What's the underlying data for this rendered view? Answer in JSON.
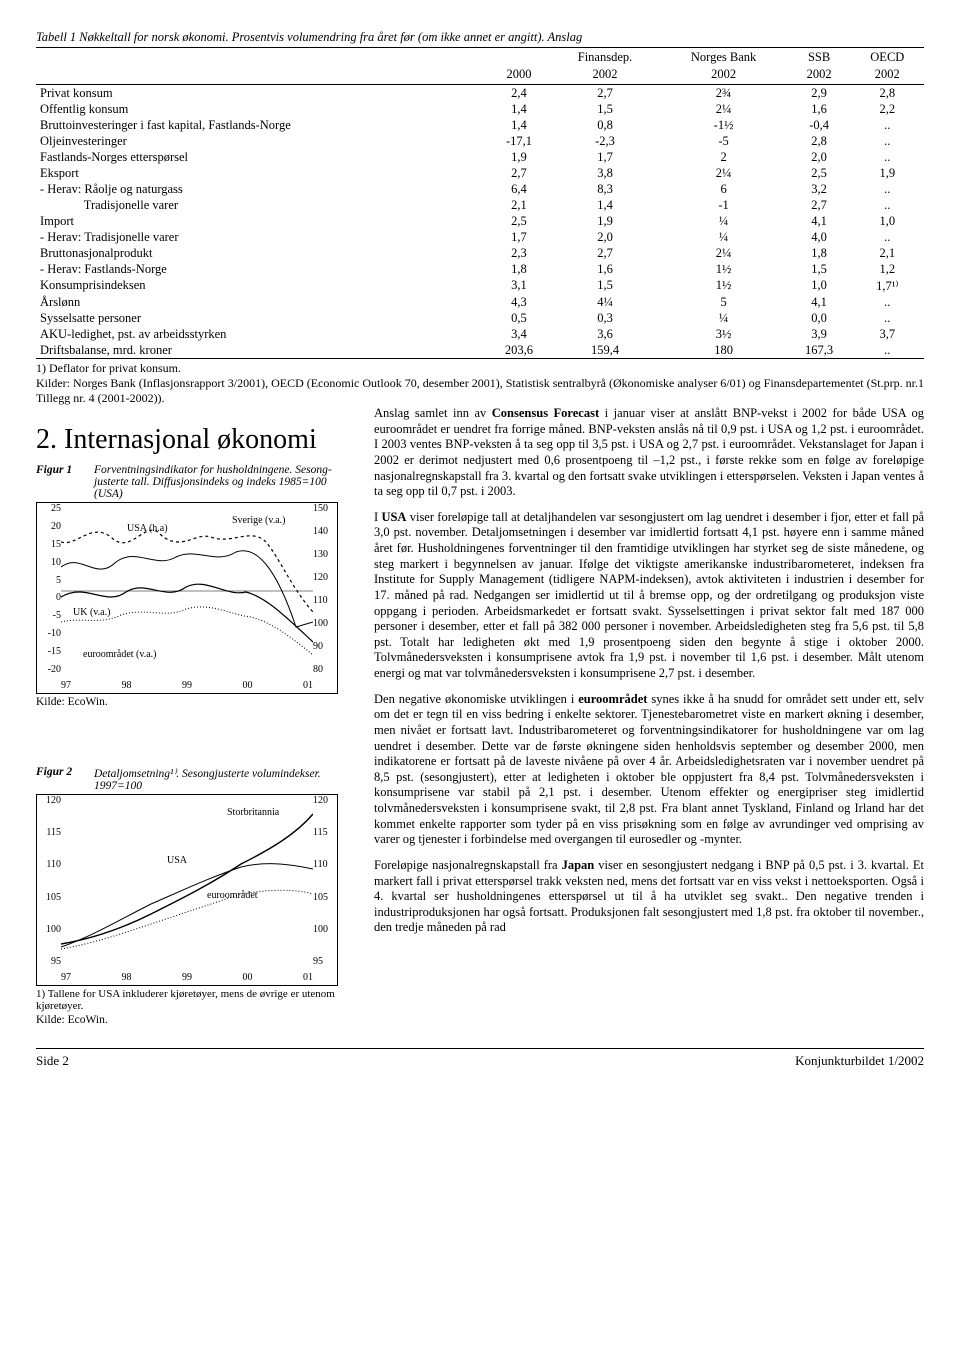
{
  "table": {
    "title": "Tabell 1 Nøkkeltall for norsk økonomi. Prosentvis volumendring fra året før (om ikke annet er angitt). Anslag",
    "head_top": [
      "",
      "",
      "Finansdep.",
      "Norges Bank",
      "SSB",
      "OECD"
    ],
    "head_bot": [
      "",
      "2000",
      "2002",
      "2002",
      "2002",
      "2002"
    ],
    "rows": [
      [
        "Privat konsum",
        "2,4",
        "2,7",
        "2¾",
        "2,9",
        "2,8"
      ],
      [
        "Offentlig konsum",
        "1,4",
        "1,5",
        "2¼",
        "1,6",
        "2,2"
      ],
      [
        "Bruttoinvesteringer i fast kapital, Fastlands-Norge",
        "1,4",
        "0,8",
        "-1½",
        "-0,4",
        ".."
      ],
      [
        "Oljeinvesteringer",
        "-17,1",
        "-2,3",
        "-5",
        "2,8",
        ".."
      ],
      [
        "Fastlands-Norges etterspørsel",
        "1,9",
        "1,7",
        "2",
        "2,0",
        ".."
      ],
      [
        "Eksport",
        "2,7",
        "3,8",
        "2¼",
        "2,5",
        "1,9"
      ],
      [
        "- Herav: Råolje og naturgass",
        "6,4",
        "8,3",
        "6",
        "3,2",
        ".."
      ],
      [
        "              Tradisjonelle varer",
        "2,1",
        "1,4",
        "-1",
        "2,7",
        ".."
      ],
      [
        "Import",
        "2,5",
        "1,9",
        "¼",
        "4,1",
        "1,0"
      ],
      [
        "- Herav: Tradisjonelle varer",
        "1,7",
        "2,0",
        "¼",
        "4,0",
        ".."
      ],
      [
        "Bruttonasjonalprodukt",
        "2,3",
        "2,7",
        "2¼",
        "1,8",
        "2,1"
      ],
      [
        "- Herav: Fastlands-Norge",
        "1,8",
        "1,6",
        "1½",
        "1,5",
        "1,2"
      ],
      [
        "Konsumprisindeksen",
        "3,1",
        "1,5",
        "1½",
        "1,0",
        "1,7¹⁾"
      ],
      [
        "Årslønn",
        "4,3",
        "4¼",
        "5",
        "4,1",
        ".."
      ],
      [
        "Sysselsatte personer",
        "0,5",
        "0,3",
        "¼",
        "0,0",
        ".."
      ],
      [
        "AKU-ledighet, pst. av arbeidsstyrken",
        "3,4",
        "3,6",
        "3½",
        "3,9",
        "3,7"
      ],
      [
        "Driftsbalanse, mrd. kroner",
        "203,6",
        "159,4",
        "180",
        "167,3",
        ".."
      ]
    ],
    "footnote1": "1) Deflator for privat konsum.",
    "footnote2": "Kilder: Norges Bank (Inflasjonsrapport 3/2001), OECD (Economic Outlook 70, desember 2001), Statistisk sentralbyrå (Økonomiske analyser 6/01) og Finansdepartementet (St.prp. nr.1 Tillegg nr. 4 (2001-2002))."
  },
  "section_title": "2. Internasjonal økonomi",
  "fig1": {
    "numlabel": "Figur 1",
    "title": "Forventningsindikator for husholdningene. Sesong­justerte tall. Diffusjonsindeks og indeks 1985=100 (USA)",
    "left_ticks": [
      "25",
      "20",
      "15",
      "10",
      "5",
      "0",
      "-5",
      "-10",
      "-15",
      "-20"
    ],
    "right_ticks": [
      "150",
      "140",
      "130",
      "120",
      "110",
      "100",
      "90",
      "80"
    ],
    "x_ticks": [
      "97",
      "98",
      "99",
      "00",
      "01"
    ],
    "labels": {
      "usa_ha": "USA (h.a)",
      "sverige": "Sverige (v.a.)",
      "uk": "UK (v.a.)",
      "euro": "euroområdet (v.a.)"
    },
    "colors": {
      "usa": "#000000",
      "sverige": "#000000",
      "uk": "#000000",
      "euro": "#000000"
    },
    "kilde": "Kilde: EcoWin."
  },
  "fig2": {
    "numlabel": "Figur 2",
    "title": "Detaljomsetning¹⁾. Sesongjusterte volumindekser. 1997=100",
    "left_ticks": [
      "120",
      "115",
      "110",
      "105",
      "100",
      "95"
    ],
    "right_ticks": [
      "120",
      "115",
      "110",
      "105",
      "100",
      "95"
    ],
    "x_ticks": [
      "97",
      "98",
      "99",
      "00",
      "01"
    ],
    "labels": {
      "stor": "Storbritannia",
      "usa": "USA",
      "euro": "euroområdet"
    },
    "note": "1) Tallene for USA inkluderer kjøretøyer, mens de øvrige er utenom kjøretøyer.",
    "kilde": "Kilde: EcoWin."
  },
  "body": {
    "p1a": "Anslag samlet inn av ",
    "p1b": "Consensus Forecast",
    "p1c": " i januar viser at anslått BNP-vekst i 2002 for både USA og euroområdet er uendret fra forrige måned. BNP-veksten anslås nå til 0,9 pst. i USA og 1,2 pst. i euroområdet. I 2003 ventes BNP-veksten å ta seg opp til 3,5 pst. i USA og 2,7 pst. i euroområdet. Vekstanslaget for Japan i 2002 er derimot nedjustert med 0,6 prosentpoeng til –1,2 pst., i første rekke som en følge av foreløpige nasjonalregnskapstall fra 3. kvartal og den fortsatt svake utviklingen i etterspørselen. Veksten i Japan ventes å ta seg opp til 0,7 pst. i 2003.",
    "p2a": "I ",
    "p2b": "USA",
    "p2c": " viser foreløpige tall at detaljhandelen var sesongjustert om lag uendret i desember i fjor, etter et fall på 3,0 pst. november. Detaljomsetningen i desember var imidlertid fortsatt 4,1 pst. høyere enn i samme måned året før. Husholdningenes forventninger til den framtidige utviklingen har styrket seg de siste månedene, og steg markert i begynnelsen av januar. Ifølge det viktigste amerikanske industribarometeret, indeksen fra Institute for Supply Management (tidligere NAPM-indeksen), avtok aktiviteten i industrien i desember for 17. måned på rad. Nedgangen ser imidlertid ut til å bremse opp, og der ordretilgang og produksjon viste oppgang i perioden. Arbeidsmarkedet er fortsatt svakt. Sysselsettingen i privat sektor falt med 187 000 personer i desember, etter et fall på 382 000 personer i november. Arbeidsledigheten steg fra 5,6 pst. til 5,8 pst. Totalt har ledigheten økt med 1,9 prosentpoeng siden den begynte å stige i oktober 2000. Tolvmånedersveksten i konsumprisene avtok fra 1,9 pst. i november til 1,6 pst. i desember. Målt utenom energi og mat var tolvmånedersveksten i konsumprisene 2,7 pst. i desember.",
    "p3a": "Den negative økonomiske utviklingen i ",
    "p3b": "euroområdet",
    "p3c": " synes ikke å ha snudd for området sett under ett, selv om det er tegn til en viss bedring i enkelte sektorer. Tjenestebarometret viste en markert økning i desember, men nivået er fortsatt lavt. Industribarometeret og forventningsindikatorer for husholdningene var om lag uendret i desember. Dette var de første økningene siden henholdsvis september og desember 2000, men indikatorene er fortsatt på de laveste nivåene på over 4 år. Arbeidsledighetsraten var i november uendret på 8,5 pst. (sesongjustert), etter at ledigheten i oktober ble oppjustert fra 8,4 pst. Tolvmånedersveksten i konsumprisene var stabil på 2,1 pst. i desember. Utenom effekter og energipriser steg imidlertid tolvmånedersveksten i konsumprisene svakt, til 2,8 pst. Fra blant annet Tyskland, Finland og Irland har det kommet enkelte rapporter som tyder på en viss prisøkning som en følge av avrundinger ved omprising av varer og tjenester i forbindelse med overgangen til eurosedler og -mynter.",
    "p4a": "Foreløpige nasjonalregnskapstall fra ",
    "p4b": "Japan",
    "p4c": " viser en sesongjustert nedgang i BNP på 0,5 pst. i 3. kvartal. Et markert fall i privat etterspørsel trakk veksten ned, mens det fortsatt var en viss vekst i nettoeksporten. Også i 4. kvartal ser husholdningenes etterspørsel ut til å ha utviklet seg svakt.. Den negative trenden i industriproduksjonen har også fortsatt. Produksjonen falt sesongjustert med 1,8 pst. fra oktober til november., den tredje måneden på rad"
  },
  "footer": {
    "left": "Side 2",
    "right": "Konjunkturbildet 1/2002"
  }
}
